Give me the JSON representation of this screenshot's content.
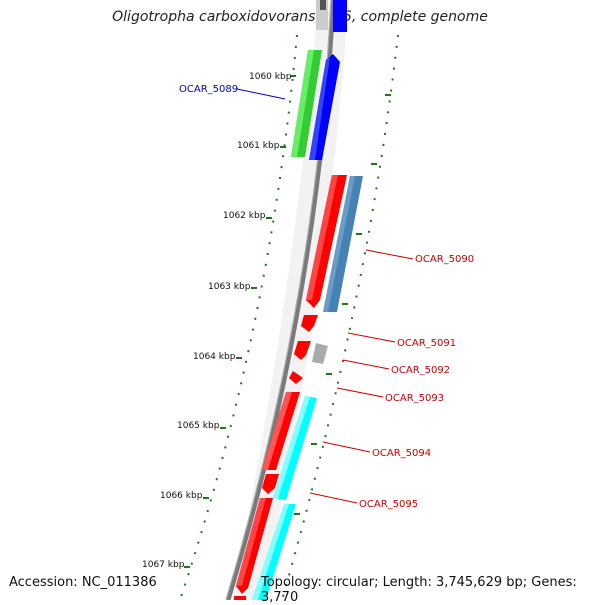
{
  "title": "Oligotropha carboxidovorans OM5, complete genome",
  "footer": {
    "accession": "Accession: NC_011386",
    "summary": "Topology: circular; Length: 3,745,629 bp; Genes: 3,770"
  },
  "kbp_labels": [
    "1060 kbp",
    "1061 kbp",
    "1062 kbp",
    "1063 kbp",
    "1064 kbp",
    "1065 kbp",
    "1066 kbp",
    "1067 kbp"
  ],
  "gene_labels": [
    "OCAR_5089",
    "OCAR_5090",
    "OCAR_5091",
    "OCAR_5092",
    "OCAR_5093",
    "OCAR_5094",
    "OCAR_5095"
  ],
  "colors": {
    "label_blue": "#0000cc",
    "label_red": "#cc0000",
    "tick_green": "#1a7a1a",
    "backbone_gray": "#808080",
    "gene_red": "#ff0000",
    "gene_green": "#33cc33",
    "gene_blue": "#0000ff",
    "gene_steelblue": "#4682b4",
    "gene_cyan": "#00ffff",
    "gene_gray": "#aaaaaa"
  }
}
